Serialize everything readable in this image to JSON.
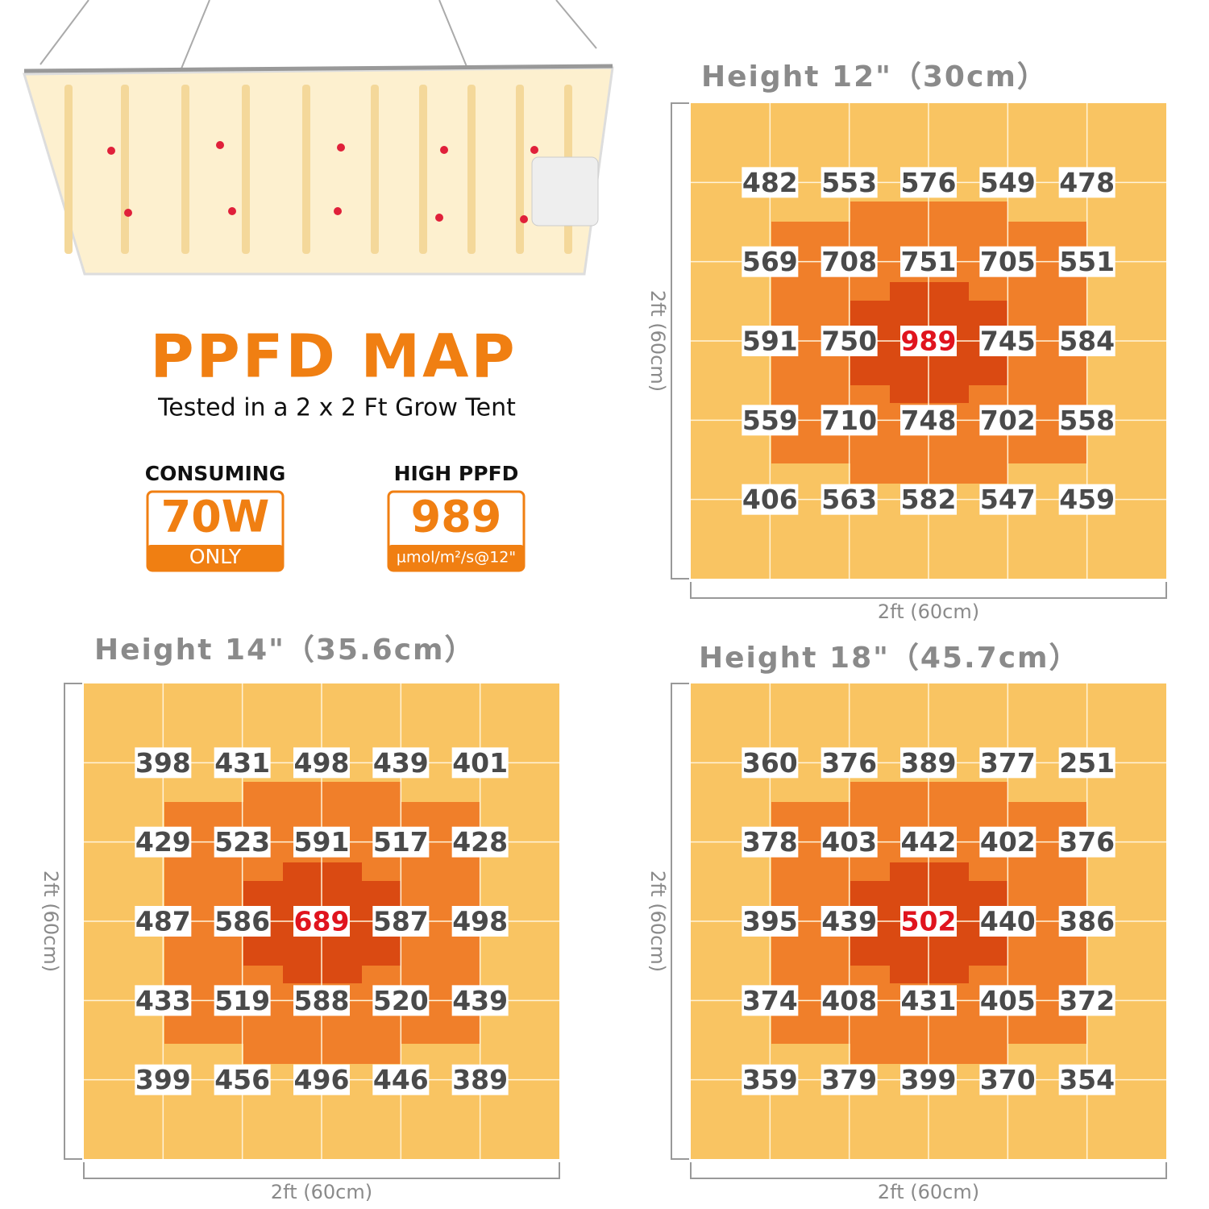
{
  "header": {
    "title": "PPFD MAP",
    "subtitle": "Tested in a 2 x 2 Ft Grow Tent"
  },
  "badges": [
    {
      "label": "CONSUMING",
      "value": "70W",
      "note": "ONLY"
    },
    {
      "label": "HIGH PPFD",
      "value": "989",
      "note": "µmol/m²/s@12\""
    }
  ],
  "maps": [
    {
      "title": "Height 12\"（30cm）",
      "width_label": "2ft (60cm)",
      "height_label": "2ft (60cm)",
      "rows": [
        [
          482,
          553,
          576,
          549,
          478
        ],
        [
          569,
          708,
          751,
          705,
          551
        ],
        [
          591,
          750,
          989,
          745,
          584
        ],
        [
          559,
          710,
          748,
          702,
          558
        ],
        [
          406,
          563,
          582,
          547,
          459
        ]
      ]
    },
    {
      "title": "Height 14\"（35.6cm）",
      "width_label": "2ft (60cm)",
      "height_label": "2ft (60cm)",
      "rows": [
        [
          398,
          431,
          498,
          439,
          401
        ],
        [
          429,
          523,
          591,
          517,
          428
        ],
        [
          487,
          586,
          689,
          587,
          498
        ],
        [
          433,
          519,
          588,
          520,
          439
        ],
        [
          399,
          456,
          496,
          446,
          389
        ]
      ]
    },
    {
      "title": "Height 18\"（45.7cm）",
      "width_label": "2ft (60cm)",
      "height_label": "2ft (60cm)",
      "rows": [
        [
          360,
          376,
          389,
          377,
          251
        ],
        [
          378,
          403,
          442,
          402,
          376
        ],
        [
          395,
          439,
          502,
          440,
          386
        ],
        [
          374,
          408,
          431,
          405,
          372
        ],
        [
          359,
          379,
          399,
          370,
          354
        ]
      ]
    }
  ]
}
